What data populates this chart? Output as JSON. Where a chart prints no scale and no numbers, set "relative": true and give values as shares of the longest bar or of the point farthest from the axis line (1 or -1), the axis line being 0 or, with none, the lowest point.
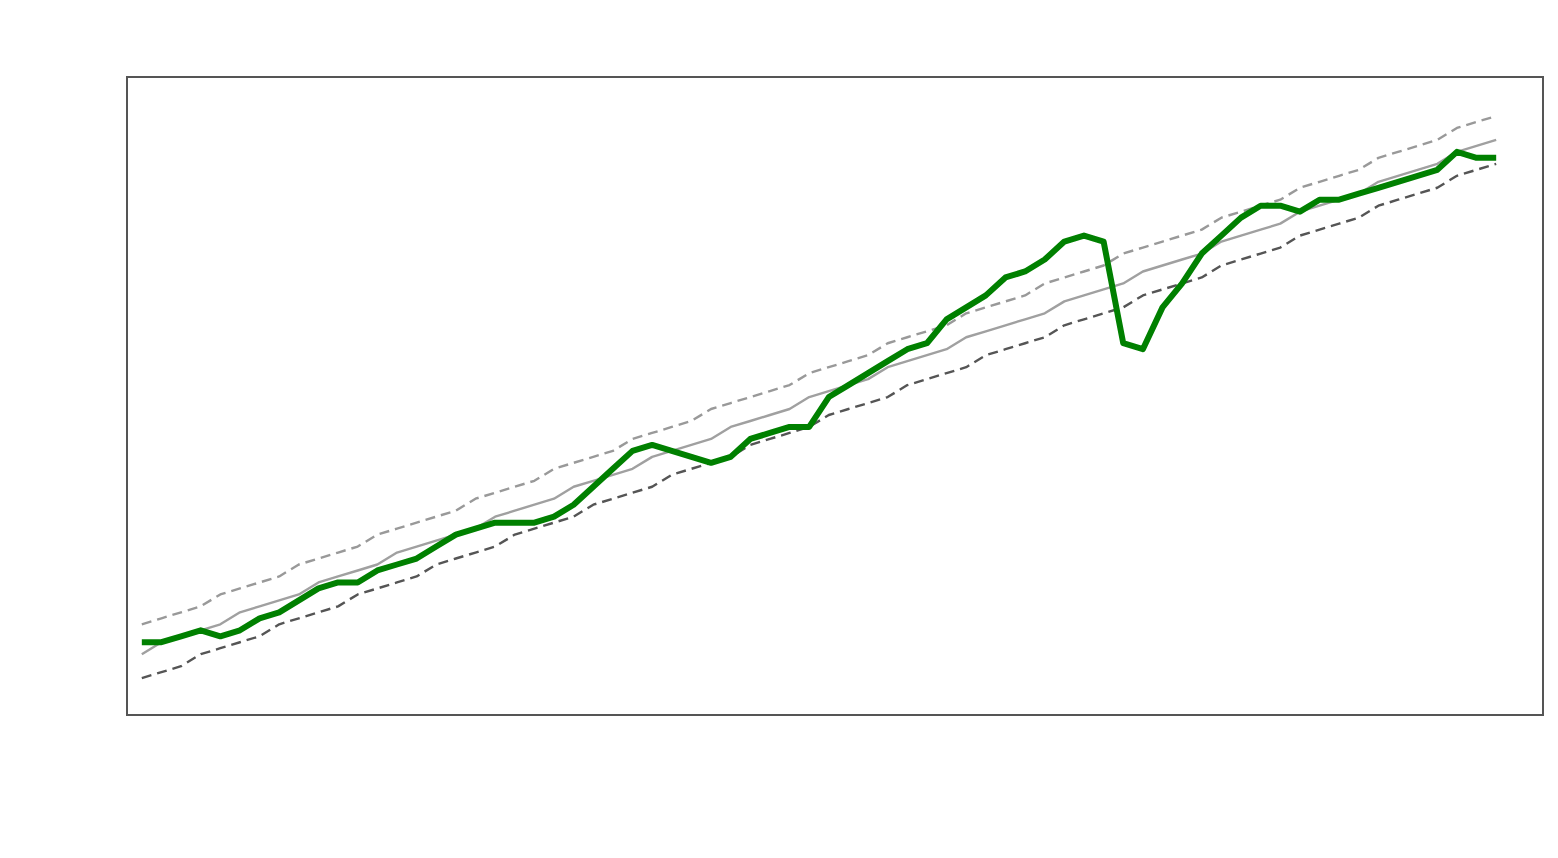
{
  "chart_data": {
    "type": "line",
    "relative": true,
    "categories": [
      null,
      null,
      null,
      null,
      null,
      null,
      null,
      null,
      null,
      null,
      null,
      null,
      null,
      null,
      null,
      null,
      null,
      null,
      null,
      null,
      null,
      null,
      null,
      null,
      null,
      null,
      null,
      null,
      null,
      null,
      null,
      null,
      null,
      null,
      null,
      null,
      null,
      null,
      null,
      null,
      null,
      null,
      null,
      null,
      null,
      null,
      null,
      null,
      null,
      null,
      null,
      null,
      null,
      null,
      null,
      null,
      null,
      null,
      null,
      null,
      null,
      null,
      null,
      null,
      null,
      null,
      null,
      null,
      null,
      null
    ],
    "series": [
      {
        "color": "#555555",
        "line_style": "dashed",
        "values": [
          0.06,
          0.07,
          0.08,
          0.1,
          0.11,
          0.12,
          0.13,
          0.15,
          0.16,
          0.17,
          0.18,
          0.2,
          0.21,
          0.22,
          0.23,
          0.25,
          0.26,
          0.27,
          0.28,
          0.3,
          0.31,
          0.32,
          0.33,
          0.35,
          0.36,
          0.37,
          0.38,
          0.4,
          0.41,
          0.42,
          0.43,
          0.45,
          0.46,
          0.47,
          0.48,
          0.5,
          0.51,
          0.52,
          0.53,
          0.55,
          0.56,
          0.57,
          0.58,
          0.6,
          0.61,
          0.62,
          0.63,
          0.65,
          0.66,
          0.67,
          0.68,
          0.7,
          0.71,
          0.72,
          0.73,
          0.75,
          0.76,
          0.77,
          0.78,
          0.8,
          0.81,
          0.82,
          0.83,
          0.85,
          0.86,
          0.87,
          0.88,
          0.9,
          0.91,
          0.92
        ]
      },
      {
        "color": "#999999",
        "line_style": "dashed",
        "values": [
          0.15,
          0.16,
          0.17,
          0.18,
          0.2,
          0.21,
          0.22,
          0.23,
          0.25,
          0.26,
          0.27,
          0.28,
          0.3,
          0.31,
          0.32,
          0.33,
          0.34,
          0.36,
          0.37,
          0.38,
          0.39,
          0.41,
          0.42,
          0.43,
          0.44,
          0.46,
          0.47,
          0.48,
          0.49,
          0.51,
          0.52,
          0.53,
          0.54,
          0.55,
          0.57,
          0.58,
          0.59,
          0.6,
          0.62,
          0.63,
          0.64,
          0.65,
          0.67,
          0.68,
          0.69,
          0.7,
          0.72,
          0.73,
          0.74,
          0.75,
          0.77,
          0.78,
          0.79,
          0.8,
          0.81,
          0.83,
          0.84,
          0.85,
          0.86,
          0.88,
          0.89,
          0.9,
          0.91,
          0.93,
          0.94,
          0.95,
          0.96,
          0.98,
          0.99,
          1.0
        ]
      },
      {
        "color": "#a0a0a0",
        "line_style": "solid",
        "values": [
          0.1,
          0.12,
          0.13,
          0.14,
          0.15,
          0.17,
          0.18,
          0.19,
          0.2,
          0.22,
          0.23,
          0.24,
          0.25,
          0.27,
          0.28,
          0.29,
          0.3,
          0.31,
          0.33,
          0.34,
          0.35,
          0.36,
          0.38,
          0.39,
          0.4,
          0.41,
          0.43,
          0.44,
          0.45,
          0.46,
          0.48,
          0.49,
          0.5,
          0.51,
          0.53,
          0.54,
          0.55,
          0.56,
          0.58,
          0.59,
          0.6,
          0.61,
          0.63,
          0.64,
          0.65,
          0.66,
          0.67,
          0.69,
          0.7,
          0.71,
          0.72,
          0.74,
          0.75,
          0.76,
          0.77,
          0.79,
          0.8,
          0.81,
          0.82,
          0.84,
          0.85,
          0.86,
          0.87,
          0.89,
          0.9,
          0.91,
          0.92,
          0.94,
          0.95,
          0.96
        ]
      },
      {
        "color": "#008000",
        "line_style": "solid",
        "values": [
          0.12,
          0.12,
          0.13,
          0.14,
          0.13,
          0.14,
          0.16,
          0.17,
          0.19,
          0.21,
          0.22,
          0.22,
          0.24,
          0.25,
          0.26,
          0.28,
          0.3,
          0.31,
          0.32,
          0.32,
          0.32,
          0.33,
          0.35,
          0.38,
          0.41,
          0.44,
          0.45,
          0.44,
          0.43,
          0.42,
          0.43,
          0.46,
          0.47,
          0.48,
          0.48,
          0.53,
          0.55,
          0.57,
          0.59,
          0.61,
          0.62,
          0.66,
          0.68,
          0.7,
          0.73,
          0.74,
          0.76,
          0.79,
          0.8,
          0.79,
          0.62,
          0.61,
          0.68,
          0.72,
          0.77,
          0.8,
          0.83,
          0.85,
          0.85,
          0.84,
          0.86,
          0.86,
          0.87,
          0.88,
          0.89,
          0.9,
          0.91,
          0.94,
          0.93,
          0.93
        ]
      }
    ]
  }
}
